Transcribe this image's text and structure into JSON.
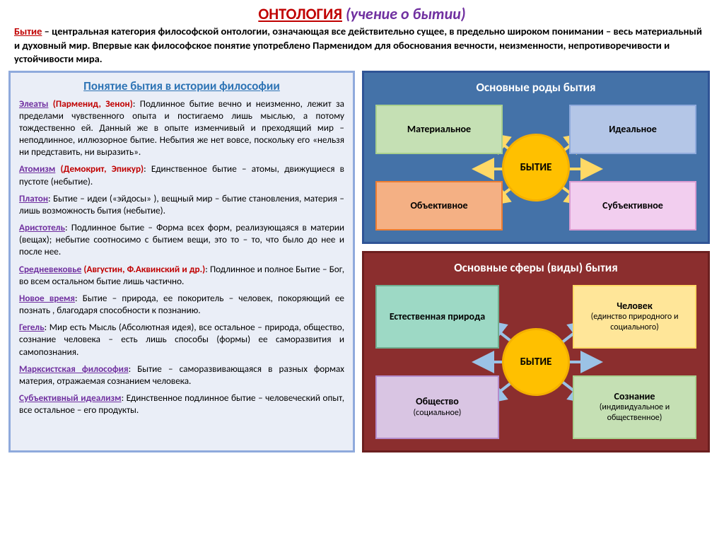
{
  "header": {
    "title_main": "ОНТОЛОГИЯ",
    "title_sub": "(учение о бытии)"
  },
  "intro": {
    "keyword": "Бытие",
    "text": " – центральная категория философской онтологии, означающая все действительно сущее, в предельно широком понимании – весь материальный и духовный мир. Впервые как философское понятие употреблено Парменидом для обоснования вечности, неизменности, непротиворечивости и устойчивости мира."
  },
  "left": {
    "title": "Понятие бытия в истории философии",
    "entries": [
      {
        "school": "Элеаты",
        "names": " (Парменид, Зенон)",
        "text": ": Подлинное бытие вечно и неизменно, лежит за пределами чувственного опыта и постигаемо лишь мыслью, а потому тождественно ей. Данный же в опыте изменчивый и преходящий мир – неподлинное, иллюзорное бытие. Небытия же нет вовсе, поскольку его «нельзя ни представить, ни выразить»."
      },
      {
        "school": "Атомизм",
        "names": " (Демокрит, Эпикур)",
        "text": ": Единственное бытие – атомы, движущиеся в пустоте (небытие)."
      },
      {
        "school": "Платон",
        "names": "",
        "text": ": Бытие – идеи («эйдосы» ), вещный мир – бытие становления, материя –лишь возможность бытия (небытие)."
      },
      {
        "school": "Аристотель",
        "names": "",
        "text": ": Подлинное бытие – Форма всех форм, реализующаяся в материи (вещах); небытие соотносимо с бытием вещи, это то – то, что было до нее и после нее."
      },
      {
        "school": "Средневековье",
        "names": " (Августин, Ф.Аквинский и др.)",
        "text": ": Подлинное и полное Бытие – Бог, во всем остальном бытие лишь частично."
      },
      {
        "school": "Новое время",
        "names": "",
        "text": ": Бытие – природа, ее покоритель – человек, покоряющий ее познать , благодаря способности к познанию."
      },
      {
        "school": "Гегель",
        "names": "",
        "text": ": Мир есть Мысль (Абсолютная идея), все остальное – природа, общество, сознание человека – есть лишь способы (формы) ее саморазвития и самопознания."
      },
      {
        "school": "Марксистская философия",
        "names": "",
        "text": ": Бытие – саморазвивающаяся в разных формах материя, отражаемая сознанием человека."
      },
      {
        "school": "Субъективный идеализм",
        "names": "",
        "text": ": Единственное подлинное бытие – человеческий опыт, все остальное – его продукты."
      }
    ]
  },
  "panel1": {
    "title": "Основные роды бытия",
    "center": "БЫТИЕ",
    "bg": "#4472a8",
    "border": "#2f5496",
    "boxes": {
      "tl": {
        "label": "Материальное",
        "bg": "#c5e0b4",
        "border": "#a9d08e"
      },
      "tr": {
        "label": "Идеальное",
        "bg": "#b4c6e7",
        "border": "#8faadc"
      },
      "bl": {
        "label": "Объективное",
        "bg": "#f4b084",
        "border": "#ed7d31"
      },
      "br": {
        "label": "Субъективное",
        "bg": "#f2ceef",
        "border": "#d99bd1"
      }
    },
    "arrow_color": "#ffd966"
  },
  "panel2": {
    "title": "Основные сферы (виды) бытия",
    "center": "БЫТИЕ",
    "bg": "#8b2e2e",
    "border": "#6b1f1f",
    "boxes": {
      "tl": {
        "main": "Естественная природа",
        "sub": "",
        "bg": "#9dd9c5",
        "border": "#70ad8f"
      },
      "tr": {
        "main": "Человек",
        "sub": "(единство природного и социального)",
        "bg": "#ffe699",
        "border": "#ffd966"
      },
      "bl": {
        "main": "Общество",
        "sub": "(социальное)",
        "bg": "#d9c5e3",
        "border": "#b48ccc"
      },
      "br": {
        "main": "Сознание",
        "sub": "(индивидуальное и общественное)",
        "bg": "#c5e0b4",
        "border": "#a9d08e"
      }
    },
    "arrow_color": "#9bc2e6"
  }
}
